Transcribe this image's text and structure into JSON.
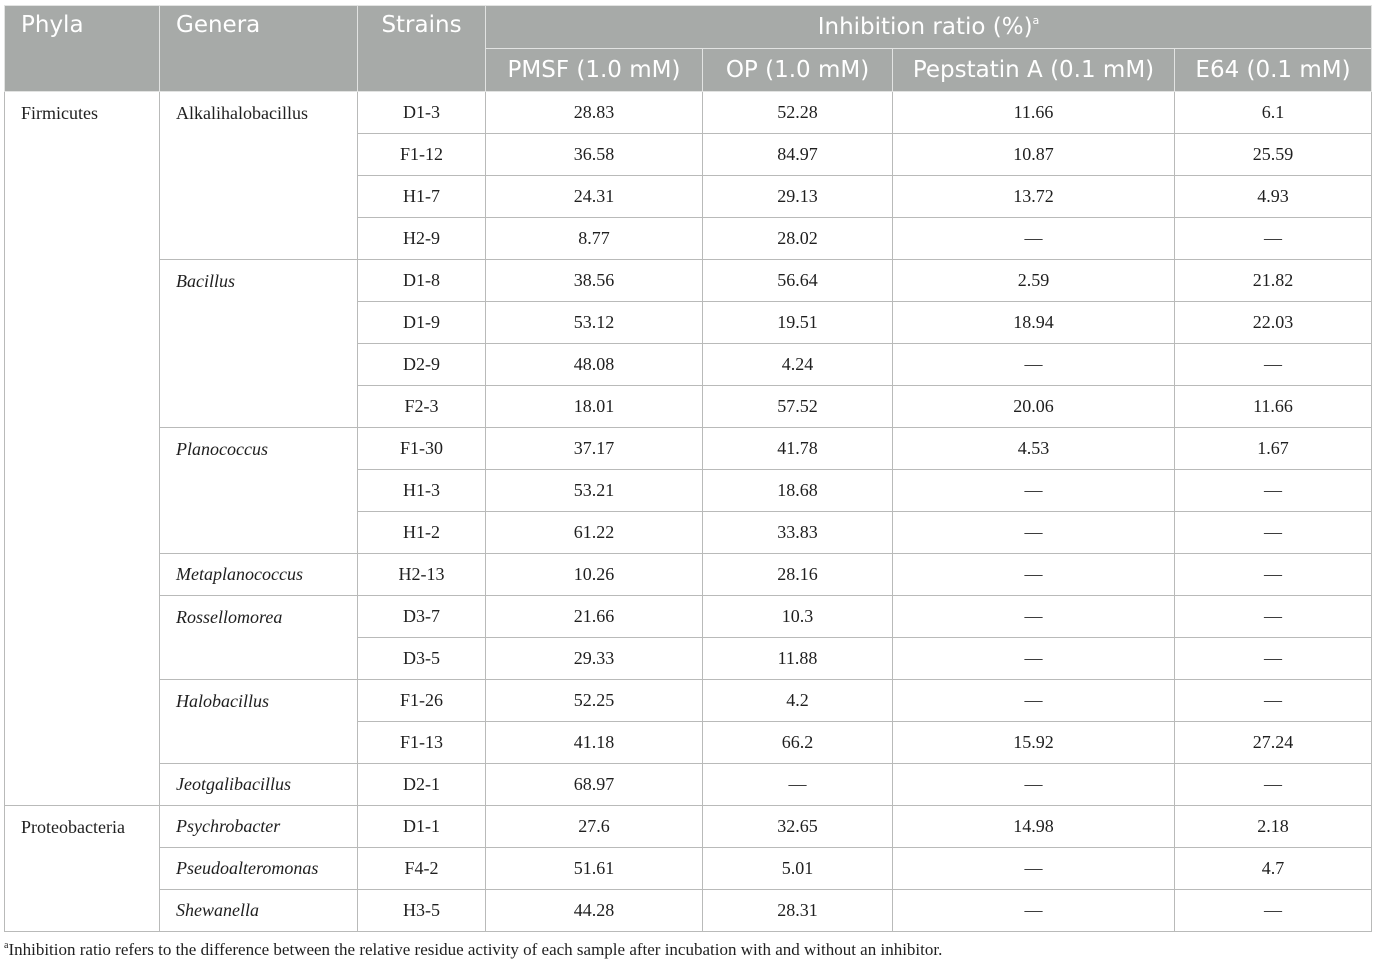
{
  "header": {
    "phyla": "Phyla",
    "genera": "Genera",
    "strains": "Strains",
    "group": "Inhibition ratio (%)",
    "group_sup": "a",
    "cols": [
      "PMSF (1.0 mM)",
      "OP (1.0 mM)",
      "Pepstatin A (0.1 mM)",
      "E64 (0.1 mM)"
    ]
  },
  "phyla": [
    "Firmicutes",
    "Proteobacteria"
  ],
  "genera": [
    "Alkalihalobacillus",
    "Bacillus",
    "Planococcus",
    "Metaplanococcus",
    "Rossellomorea",
    "Halobacillus",
    "Jeotgalibacillus",
    "Psychrobacter",
    "Pseudoalteromonas",
    "Shewanella"
  ],
  "rows": [
    [
      "D1-3",
      "28.83",
      "52.28",
      "11.66",
      "6.1"
    ],
    [
      "F1-12",
      "36.58",
      "84.97",
      "10.87",
      "25.59"
    ],
    [
      "H1-7",
      "24.31",
      "29.13",
      "13.72",
      "4.93"
    ],
    [
      "H2-9",
      "8.77",
      "28.02",
      "—",
      "—"
    ],
    [
      "D1-8",
      "38.56",
      "56.64",
      "2.59",
      "21.82"
    ],
    [
      "D1-9",
      "53.12",
      "19.51",
      "18.94",
      "22.03"
    ],
    [
      "D2-9",
      "48.08",
      "4.24",
      "—",
      "—"
    ],
    [
      "F2-3",
      "18.01",
      "57.52",
      "20.06",
      "11.66"
    ],
    [
      "F1-30",
      "37.17",
      "41.78",
      "4.53",
      "1.67"
    ],
    [
      "H1-3",
      "53.21",
      "18.68",
      "—",
      "—"
    ],
    [
      "H1-2",
      "61.22",
      "33.83",
      "—",
      "—"
    ],
    [
      "H2-13",
      "10.26",
      "28.16",
      "—",
      "—"
    ],
    [
      "D3-7",
      "21.66",
      "10.3",
      "—",
      "—"
    ],
    [
      "D3-5",
      "29.33",
      "11.88",
      "—",
      "—"
    ],
    [
      "F1-26",
      "52.25",
      "4.2",
      "—",
      "—"
    ],
    [
      "F1-13",
      "41.18",
      "66.2",
      "15.92",
      "27.24"
    ],
    [
      "D2-1",
      "68.97",
      "—",
      "—",
      "—"
    ],
    [
      "D1-1",
      "27.6",
      "32.65",
      "14.98",
      "2.18"
    ],
    [
      "F4-2",
      "51.61",
      "5.01",
      "—",
      "4.7"
    ],
    [
      "H3-5",
      "44.28",
      "28.31",
      "—",
      "—"
    ]
  ],
  "footnote": {
    "mark": "a",
    "text": "Inhibition ratio refers to the difference between the relative residue activity of each sample after incubation with and without an inhibitor."
  }
}
